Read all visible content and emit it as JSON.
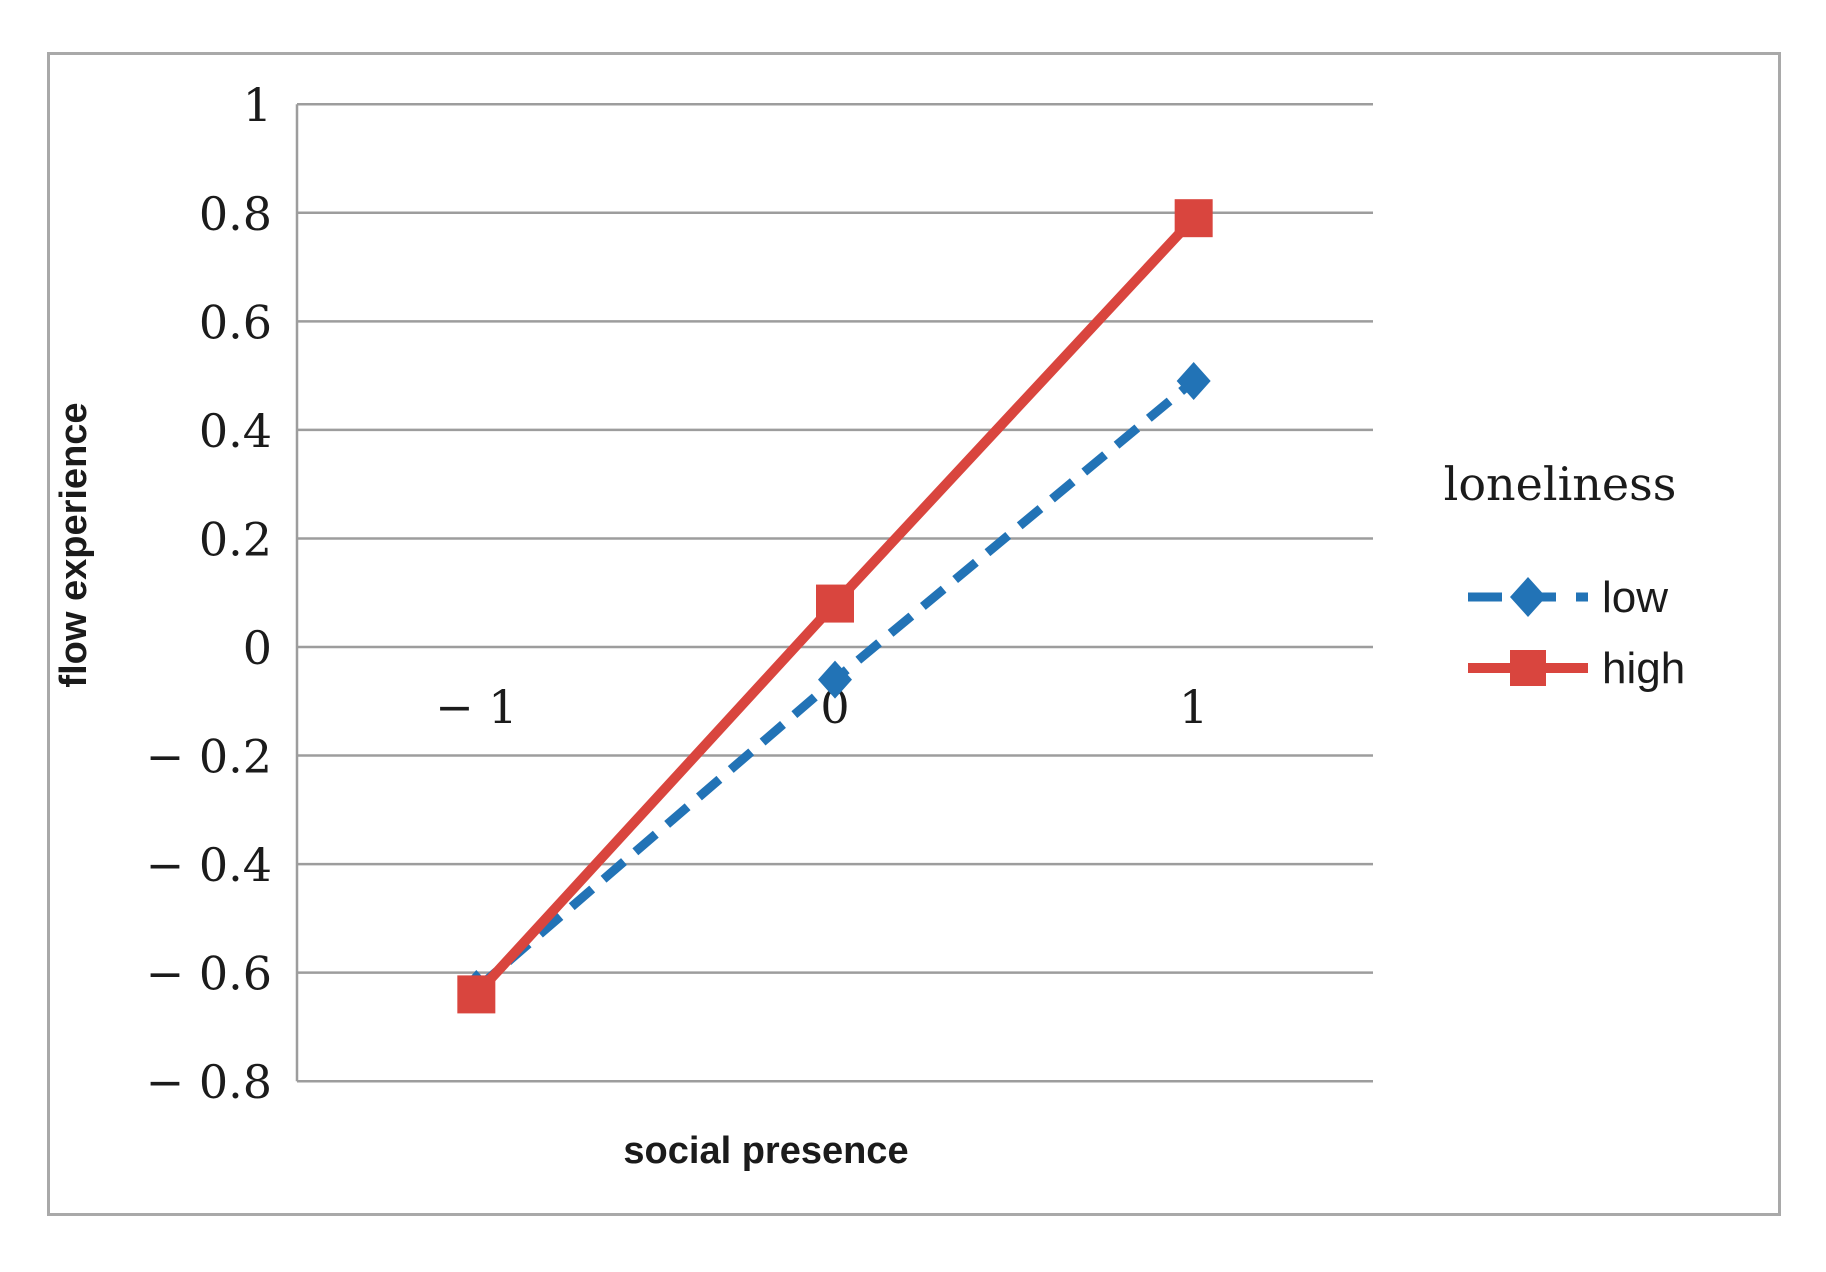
{
  "figure": {
    "background": "#ffffff",
    "border_color": "#a9a9a9"
  },
  "chart_data": {
    "type": "line",
    "title": "",
    "xlabel": "social presence",
    "ylabel": "flow experience",
    "x": [
      -1,
      0,
      1
    ],
    "x_tick_labels": [
      "− 1",
      "0",
      "1"
    ],
    "y_ticks": [
      1,
      0.8,
      0.6,
      0.4,
      0.2,
      0,
      -0.2,
      -0.4,
      -0.6,
      -0.8
    ],
    "y_tick_labels": [
      "1",
      "0.8",
      "0.6",
      "0.4",
      "0.2",
      "0",
      "− 0.2",
      "− 0.4",
      "− 0.6",
      "− 0.8"
    ],
    "ylim": [
      -0.8,
      1
    ],
    "grid": true,
    "grid_color": "#9d9d9d",
    "axis_color": "#9d9d9d",
    "text_color": "#1b1b1b",
    "legend": {
      "title": "loneliness",
      "position": "right-middle"
    },
    "series": [
      {
        "name": "low",
        "color": "#2273B6",
        "line_style": "dashed",
        "marker": "diamond",
        "values": [
          -0.63,
          -0.06,
          0.49
        ]
      },
      {
        "name": "high",
        "color": "#D9453E",
        "line_style": "solid",
        "marker": "square",
        "values": [
          -0.64,
          0.08,
          0.79
        ]
      }
    ]
  }
}
